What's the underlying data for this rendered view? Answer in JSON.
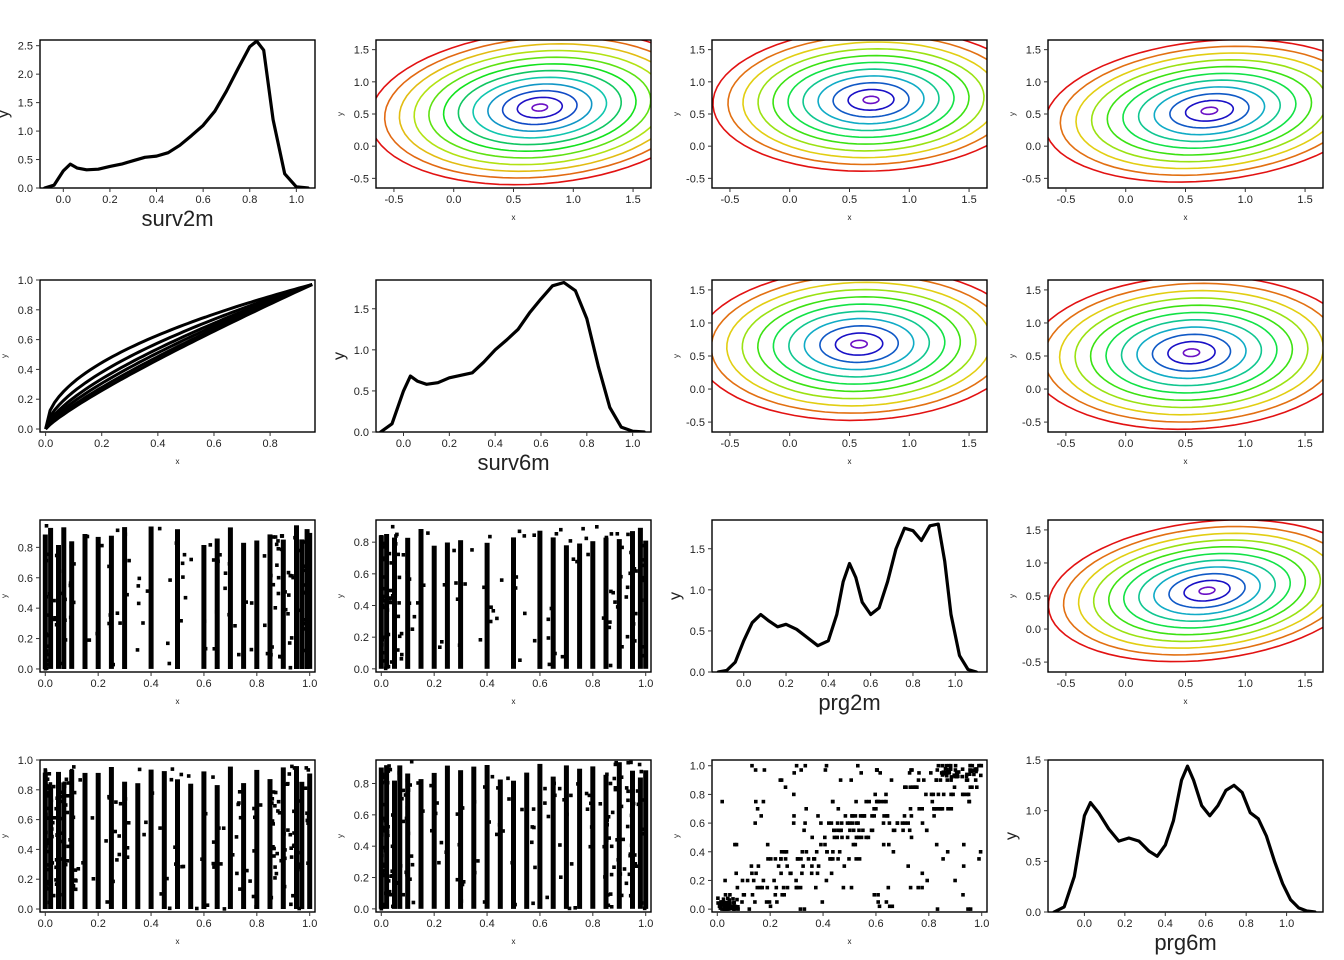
{
  "chart_data": [
    {
      "panel": "r1c1",
      "type": "line",
      "subtype": "density",
      "xlabel": "surv2m",
      "ylabel": "y",
      "xlim": [
        -0.1,
        1.08
      ],
      "ylim": [
        0,
        2.6
      ],
      "xticks": [
        0.0,
        0.2,
        0.4,
        0.6,
        0.8,
        1.0
      ],
      "yticks": [
        0.0,
        0.5,
        1.0,
        1.5,
        2.0,
        2.5
      ],
      "x": [
        -0.08,
        -0.04,
        0.0,
        0.03,
        0.06,
        0.1,
        0.15,
        0.2,
        0.25,
        0.3,
        0.35,
        0.4,
        0.45,
        0.5,
        0.55,
        0.6,
        0.65,
        0.7,
        0.75,
        0.8,
        0.83,
        0.86,
        0.9,
        0.95,
        1.0,
        1.05
      ],
      "y": [
        0.0,
        0.05,
        0.3,
        0.42,
        0.35,
        0.32,
        0.33,
        0.38,
        0.42,
        0.48,
        0.54,
        0.56,
        0.62,
        0.75,
        0.92,
        1.1,
        1.35,
        1.7,
        2.1,
        2.48,
        2.58,
        2.42,
        1.2,
        0.25,
        0.02,
        0.0
      ]
    },
    {
      "panel": "r1c2",
      "type": "contour",
      "xlabel": "x",
      "ylabel": "y",
      "xlim": [
        -0.65,
        1.65
      ],
      "ylim": [
        -0.65,
        1.65
      ],
      "xticks": [
        -0.5,
        0.0,
        0.5,
        1.0,
        1.5
      ],
      "yticks": [
        -0.5,
        0.0,
        0.5,
        1.0,
        1.5
      ],
      "center": [
        0.72,
        0.6
      ],
      "radii": [
        0.3,
        0.24
      ],
      "rotation_deg": 20,
      "levels": 12,
      "colormap": "rainbow"
    },
    {
      "panel": "r1c3",
      "type": "contour",
      "xlabel": "x",
      "ylabel": "y",
      "xlim": [
        -0.65,
        1.65
      ],
      "ylim": [
        -0.65,
        1.65
      ],
      "xticks": [
        -0.5,
        0.0,
        0.5,
        1.0,
        1.5
      ],
      "yticks": [
        -0.5,
        0.0,
        0.5,
        1.0,
        1.5
      ],
      "center": [
        0.68,
        0.72
      ],
      "radii": [
        0.3,
        0.25
      ],
      "rotation_deg": 8,
      "levels": 11,
      "colormap": "rainbow"
    },
    {
      "panel": "r1c4",
      "type": "contour",
      "xlabel": "x",
      "ylabel": "y",
      "xlim": [
        -0.65,
        1.65
      ],
      "ylim": [
        -0.65,
        1.65
      ],
      "xticks": [
        -0.5,
        0.0,
        0.5,
        1.0,
        1.5
      ],
      "yticks": [
        -0.5,
        0.0,
        0.5,
        1.0,
        1.5
      ],
      "center": [
        0.7,
        0.55
      ],
      "radii": [
        0.32,
        0.24
      ],
      "rotation_deg": 20,
      "levels": 11,
      "colormap": "rainbow"
    },
    {
      "panel": "r2c1",
      "type": "line",
      "subtype": "curves",
      "xlabel": "x",
      "ylabel": "y",
      "xlim": [
        -0.02,
        0.96
      ],
      "ylim": [
        -0.02,
        1.0
      ],
      "xticks": [
        0.0,
        0.2,
        0.4,
        0.6,
        0.8
      ],
      "yticks": [
        0.0,
        0.2,
        0.4,
        0.6,
        0.8,
        1.0
      ],
      "x_max": 0.95,
      "y_end": 0.97,
      "exponents": [
        0.5,
        0.6,
        0.68,
        0.74,
        0.8,
        0.85
      ]
    },
    {
      "panel": "r2c2",
      "type": "line",
      "subtype": "density",
      "xlabel": "surv6m",
      "ylabel": "y",
      "xlim": [
        -0.12,
        1.08
      ],
      "ylim": [
        0,
        1.85
      ],
      "xticks": [
        0.0,
        0.2,
        0.4,
        0.6,
        0.8,
        1.0
      ],
      "yticks": [
        0.0,
        0.5,
        1.0,
        1.5
      ],
      "x": [
        -0.1,
        -0.05,
        0.0,
        0.03,
        0.06,
        0.1,
        0.15,
        0.2,
        0.25,
        0.3,
        0.35,
        0.4,
        0.45,
        0.5,
        0.55,
        0.6,
        0.65,
        0.7,
        0.75,
        0.8,
        0.85,
        0.9,
        0.95,
        1.0,
        1.05
      ],
      "y": [
        0.0,
        0.1,
        0.5,
        0.68,
        0.62,
        0.58,
        0.6,
        0.66,
        0.69,
        0.72,
        0.85,
        1.0,
        1.12,
        1.25,
        1.45,
        1.62,
        1.78,
        1.82,
        1.72,
        1.38,
        0.8,
        0.3,
        0.06,
        0.01,
        0.0
      ]
    },
    {
      "panel": "r2c3",
      "type": "contour",
      "xlabel": "x",
      "ylabel": "y",
      "xlim": [
        -0.65,
        1.65
      ],
      "ylim": [
        -0.65,
        1.65
      ],
      "xticks": [
        -0.5,
        0.0,
        0.5,
        1.0,
        1.5
      ],
      "yticks": [
        -0.5,
        0.0,
        0.5,
        1.0,
        1.5
      ],
      "center": [
        0.58,
        0.68
      ],
      "radii": [
        0.31,
        0.26
      ],
      "rotation_deg": 8,
      "levels": 11,
      "colormap": "rainbow"
    },
    {
      "panel": "r2c4",
      "type": "contour",
      "xlabel": "x",
      "ylabel": "y",
      "xlim": [
        -0.65,
        1.65
      ],
      "ylim": [
        -0.65,
        1.65
      ],
      "xticks": [
        -0.5,
        0.0,
        0.5,
        1.0,
        1.5
      ],
      "yticks": [
        -0.5,
        0.0,
        0.5,
        1.0,
        1.5
      ],
      "center": [
        0.55,
        0.55
      ],
      "radii": [
        0.31,
        0.26
      ],
      "rotation_deg": 12,
      "levels": 11,
      "colormap": "rainbow"
    },
    {
      "panel": "r3c1",
      "type": "scatter",
      "subtype": "stripes",
      "xlabel": "x",
      "ylabel": "y",
      "xlim": [
        -0.02,
        1.02
      ],
      "ylim": [
        -0.02,
        0.98
      ],
      "xticks": [
        0.0,
        0.2,
        0.4,
        0.6,
        0.8,
        1.0
      ],
      "yticks": [
        0.0,
        0.2,
        0.4,
        0.6,
        0.8
      ],
      "stripe_x": [
        0.0,
        0.02,
        0.05,
        0.07,
        0.1,
        0.15,
        0.2,
        0.25,
        0.3,
        0.4,
        0.5,
        0.6,
        0.65,
        0.7,
        0.75,
        0.8,
        0.85,
        0.9,
        0.95,
        0.97,
        0.99,
        1.0
      ],
      "y_max": 0.95,
      "scatter_count": 160
    },
    {
      "panel": "r3c2",
      "type": "scatter",
      "subtype": "stripes",
      "xlabel": "x",
      "ylabel": "y",
      "xlim": [
        -0.02,
        1.02
      ],
      "ylim": [
        -0.02,
        0.94
      ],
      "xticks": [
        0.0,
        0.2,
        0.4,
        0.6,
        0.8,
        1.0
      ],
      "yticks": [
        0.0,
        0.2,
        0.4,
        0.6,
        0.8
      ],
      "stripe_x": [
        0.0,
        0.02,
        0.05,
        0.1,
        0.15,
        0.2,
        0.25,
        0.3,
        0.4,
        0.5,
        0.6,
        0.65,
        0.7,
        0.75,
        0.8,
        0.85,
        0.9,
        0.95,
        0.98,
        1.0
      ],
      "y_max": 0.9,
      "scatter_count": 160
    },
    {
      "panel": "r3c3",
      "type": "line",
      "subtype": "density",
      "xlabel": "prg2m",
      "ylabel": "y",
      "xlim": [
        -0.15,
        1.15
      ],
      "ylim": [
        0,
        1.85
      ],
      "xticks": [
        0.0,
        0.2,
        0.4,
        0.6,
        0.8,
        1.0
      ],
      "yticks": [
        0.0,
        0.5,
        1.0,
        1.5
      ],
      "x": [
        -0.12,
        -0.08,
        -0.04,
        0.0,
        0.04,
        0.08,
        0.12,
        0.16,
        0.2,
        0.25,
        0.3,
        0.35,
        0.4,
        0.44,
        0.47,
        0.5,
        0.53,
        0.56,
        0.6,
        0.64,
        0.68,
        0.72,
        0.76,
        0.8,
        0.84,
        0.88,
        0.92,
        0.95,
        0.98,
        1.02,
        1.06,
        1.1
      ],
      "y": [
        0.0,
        0.02,
        0.12,
        0.38,
        0.6,
        0.7,
        0.62,
        0.55,
        0.58,
        0.52,
        0.42,
        0.32,
        0.38,
        0.7,
        1.1,
        1.32,
        1.15,
        0.85,
        0.7,
        0.78,
        1.1,
        1.5,
        1.75,
        1.72,
        1.6,
        1.78,
        1.8,
        1.35,
        0.7,
        0.2,
        0.03,
        0.0
      ]
    },
    {
      "panel": "r3c4",
      "type": "contour",
      "xlabel": "x",
      "ylabel": "y",
      "xlim": [
        -0.65,
        1.65
      ],
      "ylim": [
        -0.65,
        1.65
      ],
      "xticks": [
        -0.5,
        0.0,
        0.5,
        1.0,
        1.5
      ],
      "yticks": [
        -0.5,
        0.0,
        0.5,
        1.0,
        1.5
      ],
      "center": [
        0.68,
        0.58
      ],
      "radii": [
        0.31,
        0.23
      ],
      "rotation_deg": 22,
      "levels": 11,
      "colormap": "rainbow"
    },
    {
      "panel": "r4c1",
      "type": "scatter",
      "subtype": "stripes",
      "xlabel": "x",
      "ylabel": "y",
      "xlim": [
        -0.02,
        1.02
      ],
      "ylim": [
        -0.02,
        1.0
      ],
      "xticks": [
        0.0,
        0.2,
        0.4,
        0.6,
        0.8,
        1.0
      ],
      "yticks": [
        0.0,
        0.2,
        0.4,
        0.6,
        0.8,
        1.0
      ],
      "stripe_x": [
        0.0,
        0.02,
        0.05,
        0.07,
        0.1,
        0.15,
        0.2,
        0.25,
        0.3,
        0.35,
        0.4,
        0.45,
        0.5,
        0.55,
        0.6,
        0.65,
        0.7,
        0.75,
        0.8,
        0.85,
        0.9,
        0.95,
        0.97,
        1.0
      ],
      "y_max": 0.96,
      "scatter_count": 220
    },
    {
      "panel": "r4c2",
      "type": "scatter",
      "subtype": "stripes",
      "xlabel": "x",
      "ylabel": "y",
      "xlim": [
        -0.02,
        1.02
      ],
      "ylim": [
        -0.02,
        0.95
      ],
      "xticks": [
        0.0,
        0.2,
        0.4,
        0.6,
        0.8,
        1.0
      ],
      "yticks": [
        0.0,
        0.2,
        0.4,
        0.6,
        0.8
      ],
      "stripe_x": [
        0.0,
        0.02,
        0.05,
        0.07,
        0.1,
        0.15,
        0.2,
        0.25,
        0.3,
        0.35,
        0.4,
        0.45,
        0.5,
        0.55,
        0.6,
        0.65,
        0.7,
        0.75,
        0.8,
        0.85,
        0.9,
        0.95,
        0.98,
        1.0
      ],
      "y_max": 0.94,
      "scatter_count": 220
    },
    {
      "panel": "r4c3",
      "type": "scatter",
      "subtype": "grid",
      "xlabel": "x",
      "ylabel": "y",
      "xlim": [
        -0.02,
        1.02
      ],
      "ylim": [
        -0.02,
        1.04
      ],
      "xticks": [
        0.0,
        0.2,
        0.4,
        0.6,
        0.8,
        1.0
      ],
      "yticks": [
        0.0,
        0.2,
        0.4,
        0.6,
        0.8,
        1.0
      ],
      "scatter_count": 320
    },
    {
      "panel": "r4c4",
      "type": "line",
      "subtype": "density",
      "xlabel": "prg6m",
      "ylabel": "y",
      "xlim": [
        -0.18,
        1.18
      ],
      "ylim": [
        0,
        1.5
      ],
      "xticks": [
        0.0,
        0.2,
        0.4,
        0.6,
        0.8,
        1.0
      ],
      "yticks": [
        0.0,
        0.5,
        1.0,
        1.5
      ],
      "x": [
        -0.15,
        -0.1,
        -0.05,
        0.0,
        0.03,
        0.07,
        0.12,
        0.17,
        0.22,
        0.27,
        0.32,
        0.36,
        0.4,
        0.44,
        0.48,
        0.51,
        0.54,
        0.58,
        0.62,
        0.66,
        0.7,
        0.74,
        0.78,
        0.82,
        0.86,
        0.9,
        0.94,
        0.98,
        1.02,
        1.06,
        1.1,
        1.14
      ],
      "y": [
        0.0,
        0.05,
        0.35,
        0.95,
        1.08,
        0.98,
        0.82,
        0.7,
        0.73,
        0.7,
        0.6,
        0.55,
        0.66,
        0.9,
        1.3,
        1.44,
        1.3,
        1.05,
        0.95,
        1.05,
        1.2,
        1.25,
        1.18,
        0.98,
        0.92,
        0.75,
        0.5,
        0.28,
        0.12,
        0.04,
        0.01,
        0.0
      ]
    }
  ]
}
